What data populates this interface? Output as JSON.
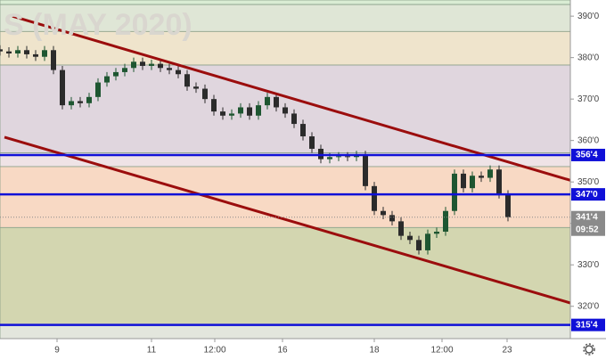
{
  "chart_data": {
    "type": "candlestick",
    "title": "S (MAY 2020)",
    "x": [
      0,
      1,
      2,
      3,
      4,
      5,
      6,
      7,
      8,
      9,
      10,
      11,
      12,
      13,
      14,
      15,
      16,
      17,
      18,
      19,
      20,
      21,
      22,
      23,
      24,
      25,
      26,
      27,
      28,
      29,
      30,
      31,
      32,
      33,
      34,
      35,
      36,
      37,
      38,
      39,
      40,
      41,
      42,
      43,
      44,
      45,
      46,
      47,
      48,
      49,
      50,
      51,
      52,
      53,
      54,
      55,
      56,
      57
    ],
    "open": [
      382,
      381.5,
      381,
      381.8,
      380.8,
      380.2,
      381.8,
      377,
      368.5,
      369.5,
      369,
      370.5,
      374,
      375.5,
      376.5,
      377.5,
      379,
      378,
      378.5,
      377.5,
      377,
      376,
      373,
      372.5,
      370,
      367,
      366,
      366.5,
      368,
      366,
      368.5,
      370.5,
      368,
      366.5,
      364,
      361,
      358,
      355.5,
      356,
      356.2,
      356,
      356.5,
      349,
      343,
      342,
      340.5,
      337,
      336,
      333.5,
      337.5,
      338,
      343,
      352,
      348.5,
      351.5,
      351,
      353,
      347
    ],
    "high": [
      383,
      382.5,
      382.8,
      382.8,
      381.8,
      382.8,
      382.8,
      378,
      370.5,
      370.5,
      371.5,
      375,
      376.5,
      377.5,
      378.5,
      380,
      380,
      379.5,
      379.5,
      378.5,
      378,
      377,
      374,
      373.5,
      371,
      368,
      367.5,
      369,
      369,
      369.5,
      371.5,
      371.5,
      369,
      367.5,
      365,
      362,
      359,
      357,
      357.2,
      357.2,
      357.5,
      357.5,
      350,
      344,
      343,
      341.5,
      338,
      337,
      338.5,
      339,
      344,
      353,
      353,
      352.5,
      352.5,
      354,
      354,
      348
    ],
    "low": [
      380.5,
      380,
      380,
      379.8,
      379.2,
      379.2,
      376,
      367.5,
      367.5,
      368,
      368,
      369.5,
      373,
      374.5,
      375.5,
      376.5,
      377,
      377,
      376.5,
      376,
      375,
      372,
      371.5,
      369,
      366,
      365,
      365,
      365.5,
      365,
      365,
      367.5,
      367,
      365.5,
      363,
      360,
      357,
      354.5,
      354.5,
      355,
      355,
      355,
      348,
      342,
      341,
      339.5,
      336,
      335,
      332.5,
      332.5,
      336.5,
      337,
      342,
      347.5,
      347.5,
      350,
      350,
      346,
      340.5
    ],
    "close": [
      381.5,
      381,
      381.8,
      380.8,
      380.2,
      381.8,
      377,
      368.5,
      369.5,
      369,
      370.5,
      374,
      375.5,
      376.5,
      377.5,
      379,
      378,
      378.5,
      377.5,
      377,
      376,
      373,
      372.5,
      370,
      367,
      366,
      366.5,
      368,
      366,
      368.5,
      370.5,
      368,
      366.5,
      364,
      361,
      358,
      355.5,
      356,
      356.2,
      356,
      356.5,
      349,
      343,
      342,
      340.5,
      337,
      336,
      333.5,
      337.5,
      338,
      343,
      352,
      348.5,
      351.5,
      351,
      353,
      347,
      341.5
    ],
    "up_color": "#1e5631",
    "down_color": "#2b2b2b",
    "xlim": [
      0,
      64
    ],
    "ylim": [
      312.2,
      393.9
    ],
    "xticks": [
      {
        "value": 6.4,
        "label": "9"
      },
      {
        "value": 17,
        "label": "11"
      },
      {
        "value": 24.1,
        "label": "12:00"
      },
      {
        "value": 31.7,
        "label": "16"
      },
      {
        "value": 42,
        "label": "18"
      },
      {
        "value": 49.6,
        "label": "12:00"
      },
      {
        "value": 56.9,
        "label": "23"
      }
    ],
    "yticks": [
      {
        "value": 390,
        "label": "390'0"
      },
      {
        "value": 380,
        "label": "380'0"
      },
      {
        "value": 370,
        "label": "370'0"
      },
      {
        "value": 360,
        "label": "360'0"
      },
      {
        "value": 350,
        "label": "350'0"
      },
      {
        "value": 340,
        "label": "340'0"
      },
      {
        "value": 330,
        "label": "330'0"
      },
      {
        "value": 320,
        "label": "320'0"
      }
    ],
    "zones": [
      {
        "from": 392.8,
        "to": 393.9,
        "color": "#d9ecd3"
      },
      {
        "from": 386.3,
        "to": 392.8,
        "color": "#dfe6d6"
      },
      {
        "from": 378.2,
        "to": 386.3,
        "color": "#efe4cc"
      },
      {
        "from": 357,
        "to": 378.2,
        "color": "#e0d6de"
      },
      {
        "from": 353.7,
        "to": 357,
        "color": "#efe3e6"
      },
      {
        "from": 339,
        "to": 353.7,
        "color": "#f8d9c4"
      },
      {
        "from": 315.5,
        "to": 339,
        "color": "#d3d6b0"
      },
      {
        "from": 312.2,
        "to": 315.5,
        "color": "#e3e6dd"
      }
    ],
    "levels": [
      {
        "value": 356.5,
        "label": "356'4",
        "color": "#1010d8"
      },
      {
        "value": 347,
        "label": "347'0",
        "color": "#1010d8"
      },
      {
        "value": 315.5,
        "label": "315'4",
        "color": "#1010d8"
      }
    ],
    "last_price": {
      "value": 341.5,
      "label": "341'4",
      "countdown": "09:52",
      "color": "#8a8a8a"
    },
    "trendlines": [
      {
        "x": [
          1.4,
          64
        ],
        "y": [
          390,
          350.4
        ],
        "color": "#9b0d0d"
      },
      {
        "x": [
          0.5,
          64
        ],
        "y": [
          360.8,
          320.8
        ],
        "color": "#9b0d0d"
      }
    ]
  }
}
